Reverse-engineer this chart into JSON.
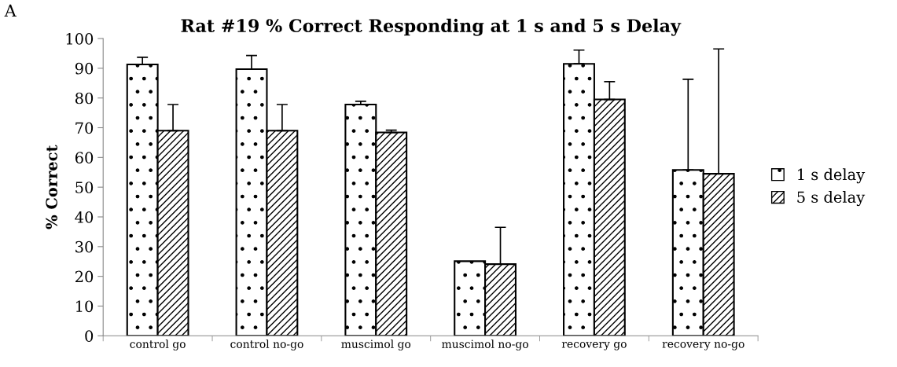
{
  "chart_data": {
    "type": "bar",
    "title": "Rat #19 % Correct Responding at 1 s and 5 s Delay",
    "ylabel": "% Correct",
    "categories": [
      "control go",
      "control no-go",
      "muscimol go",
      "muscimol no-go",
      "recovery go",
      "recovery no-go"
    ],
    "series": [
      {
        "name": "1 s delay",
        "color": "#000000",
        "values": [
          91.3,
          89.7,
          77.8,
          25.1,
          91.5,
          55.8
        ],
        "errors": [
          2.4,
          4.6,
          1.1,
          null,
          4.6,
          30.5
        ]
      },
      {
        "name": "5 s delay",
        "color": "#000000",
        "values": [
          69.0,
          69.0,
          68.4,
          24.1,
          79.5,
          54.5
        ],
        "errors": [
          8.8,
          8.8,
          0.8,
          12.4,
          6.0,
          42.0
        ]
      }
    ],
    "ylim": [
      0,
      100
    ],
    "yticks": [
      0,
      10,
      20,
      30,
      40,
      50,
      60,
      70,
      80,
      90,
      100
    ],
    "grid": false,
    "legend": "right",
    "annotations": [
      "A"
    ]
  }
}
